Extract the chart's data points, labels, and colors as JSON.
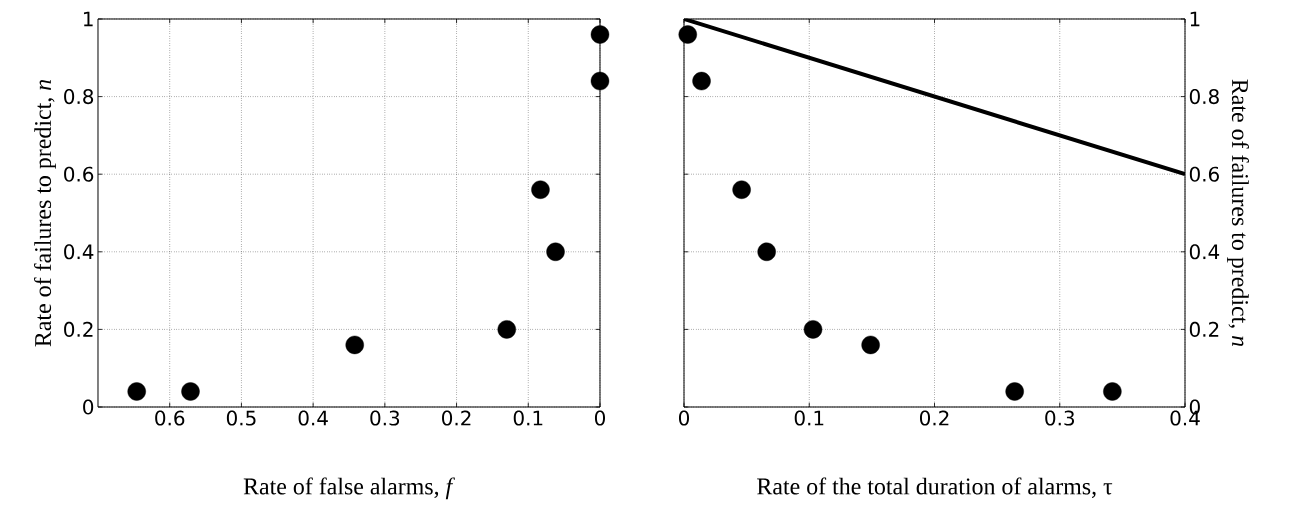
{
  "chart_data": [
    {
      "type": "scatter",
      "xlabel": "Rate of false alarms, *f*",
      "ylabel": "Rate of  failures to predict, *n*",
      "xlim": [
        0.7,
        0
      ],
      "xticks": [
        0.6,
        0.5,
        0.4,
        0.3,
        0.2,
        0.1,
        0
      ],
      "ylim": [
        0,
        1
      ],
      "yticks": [
        0,
        0.2,
        0.4,
        0.6,
        0.8,
        1
      ],
      "grid": true,
      "marker": "circle",
      "series": [
        {
          "color": "#000000",
          "x": [
            0.646,
            0.571,
            0.342,
            0.13,
            0.083,
            0.062,
            0,
            0
          ],
          "values": [
            0.04,
            0.04,
            0.16,
            0.2,
            0.56,
            0.4,
            0.96,
            0.84
          ]
        }
      ]
    },
    {
      "type": "scatter",
      "xlabel": "Rate of the total duration of alarms, τ",
      "y2label": "Rate of  failures to predict, *n*",
      "xlim": [
        0,
        0.4
      ],
      "xticks": [
        0,
        0.1,
        0.2,
        0.3,
        0.4
      ],
      "y2lim": [
        0,
        1
      ],
      "y2ticks": [
        0,
        0.2,
        0.4,
        0.6,
        0.8,
        1
      ],
      "grid": true,
      "marker": "circle",
      "series": [
        {
          "color": "#000000",
          "axis": "y2",
          "x": [
            0.003,
            0.014,
            0.046,
            0.066,
            0.103,
            0.149,
            0.264,
            0.342
          ],
          "values": [
            0.96,
            0.84,
            0.56,
            0.4,
            0.2,
            0.16,
            0.04,
            0.04
          ]
        },
        {
          "type": "line",
          "color": "#000000",
          "axis": "y2",
          "marker": "none",
          "x": [
            0,
            0.4
          ],
          "values": [
            1,
            0.6
          ]
        }
      ]
    }
  ]
}
